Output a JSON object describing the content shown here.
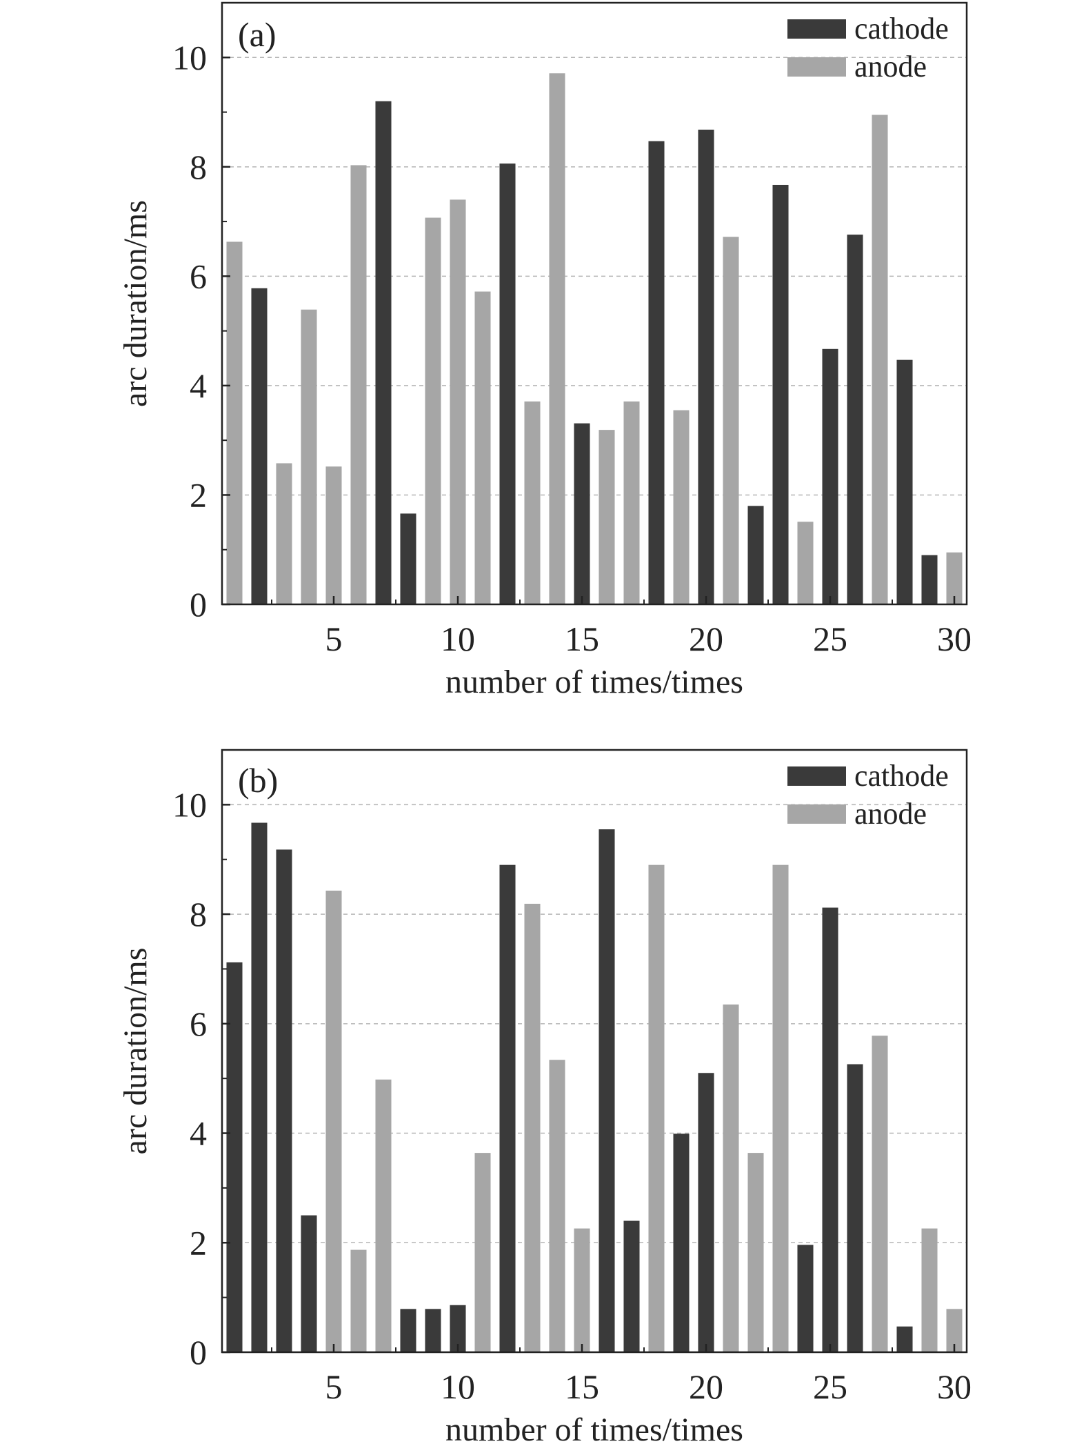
{
  "chart_data": [
    {
      "type": "bar",
      "panel_label": "(a)",
      "xlabel": "number of times/times",
      "ylabel": "arc duration/ms",
      "xlim": [
        0.5,
        30.5
      ],
      "ylim": [
        0,
        11
      ],
      "xticks": [
        5,
        10,
        15,
        20,
        25,
        30
      ],
      "yticks": [
        0,
        2,
        4,
        6,
        8,
        10
      ],
      "grid": "horizontal-dashed",
      "legend_position": "top-right",
      "colors": {
        "cathode": "#3a3a3a",
        "anode": "#a6a6a6"
      },
      "legend": [
        {
          "key": "cathode",
          "label": "cathode"
        },
        {
          "key": "anode",
          "label": "anode"
        }
      ],
      "bars": [
        {
          "x": 1,
          "type": "anode",
          "value": 6.63
        },
        {
          "x": 2,
          "type": "cathode",
          "value": 5.78
        },
        {
          "x": 3,
          "type": "anode",
          "value": 2.58
        },
        {
          "x": 4,
          "type": "anode",
          "value": 5.39
        },
        {
          "x": 5,
          "type": "anode",
          "value": 2.52
        },
        {
          "x": 6,
          "type": "anode",
          "value": 8.03
        },
        {
          "x": 7,
          "type": "cathode",
          "value": 9.2
        },
        {
          "x": 8,
          "type": "cathode",
          "value": 1.66
        },
        {
          "x": 9,
          "type": "anode",
          "value": 7.07
        },
        {
          "x": 10,
          "type": "anode",
          "value": 7.4
        },
        {
          "x": 11,
          "type": "anode",
          "value": 5.72
        },
        {
          "x": 12,
          "type": "cathode",
          "value": 8.06
        },
        {
          "x": 13,
          "type": "anode",
          "value": 3.71
        },
        {
          "x": 14,
          "type": "anode",
          "value": 9.71
        },
        {
          "x": 15,
          "type": "cathode",
          "value": 3.31
        },
        {
          "x": 16,
          "type": "anode",
          "value": 3.19
        },
        {
          "x": 17,
          "type": "anode",
          "value": 3.71
        },
        {
          "x": 18,
          "type": "cathode",
          "value": 8.47
        },
        {
          "x": 19,
          "type": "anode",
          "value": 3.55
        },
        {
          "x": 20,
          "type": "cathode",
          "value": 8.68
        },
        {
          "x": 21,
          "type": "anode",
          "value": 6.72
        },
        {
          "x": 22,
          "type": "cathode",
          "value": 1.8
        },
        {
          "x": 23,
          "type": "cathode",
          "value": 7.67
        },
        {
          "x": 24,
          "type": "anode",
          "value": 1.51
        },
        {
          "x": 25,
          "type": "cathode",
          "value": 4.67
        },
        {
          "x": 26,
          "type": "cathode",
          "value": 6.76
        },
        {
          "x": 27,
          "type": "anode",
          "value": 8.95
        },
        {
          "x": 28,
          "type": "cathode",
          "value": 4.47
        },
        {
          "x": 29,
          "type": "cathode",
          "value": 0.9
        },
        {
          "x": 30,
          "type": "anode",
          "value": 0.95
        }
      ]
    },
    {
      "type": "bar",
      "panel_label": "(b)",
      "xlabel": "number of times/times",
      "ylabel": "arc duration/ms",
      "xlim": [
        0.5,
        30.5
      ],
      "ylim": [
        0,
        11
      ],
      "xticks": [
        5,
        10,
        15,
        20,
        25,
        30
      ],
      "yticks": [
        0,
        2,
        4,
        6,
        8,
        10
      ],
      "grid": "horizontal-dashed",
      "legend_position": "top-right",
      "colors": {
        "cathode": "#3a3a3a",
        "anode": "#a6a6a6"
      },
      "legend": [
        {
          "key": "cathode",
          "label": "cathode"
        },
        {
          "key": "anode",
          "label": "anode"
        }
      ],
      "bars": [
        {
          "x": 1,
          "type": "cathode",
          "value": 7.12
        },
        {
          "x": 2,
          "type": "cathode",
          "value": 9.67
        },
        {
          "x": 3,
          "type": "cathode",
          "value": 9.18
        },
        {
          "x": 4,
          "type": "cathode",
          "value": 2.5
        },
        {
          "x": 5,
          "type": "anode",
          "value": 8.43
        },
        {
          "x": 6,
          "type": "anode",
          "value": 1.87
        },
        {
          "x": 7,
          "type": "anode",
          "value": 4.98
        },
        {
          "x": 8,
          "type": "cathode",
          "value": 0.79
        },
        {
          "x": 9,
          "type": "cathode",
          "value": 0.79
        },
        {
          "x": 10,
          "type": "cathode",
          "value": 0.86
        },
        {
          "x": 11,
          "type": "anode",
          "value": 3.64
        },
        {
          "x": 12,
          "type": "cathode",
          "value": 8.9
        },
        {
          "x": 13,
          "type": "anode",
          "value": 8.19
        },
        {
          "x": 14,
          "type": "anode",
          "value": 5.34
        },
        {
          "x": 15,
          "type": "anode",
          "value": 2.26
        },
        {
          "x": 16,
          "type": "cathode",
          "value": 9.55
        },
        {
          "x": 17,
          "type": "cathode",
          "value": 2.4
        },
        {
          "x": 18,
          "type": "anode",
          "value": 8.9
        },
        {
          "x": 19,
          "type": "cathode",
          "value": 3.99
        },
        {
          "x": 20,
          "type": "cathode",
          "value": 5.1
        },
        {
          "x": 21,
          "type": "anode",
          "value": 6.35
        },
        {
          "x": 22,
          "type": "anode",
          "value": 3.64
        },
        {
          "x": 23,
          "type": "anode",
          "value": 8.9
        },
        {
          "x": 24,
          "type": "cathode",
          "value": 1.96
        },
        {
          "x": 25,
          "type": "cathode",
          "value": 8.12
        },
        {
          "x": 26,
          "type": "cathode",
          "value": 5.26
        },
        {
          "x": 27,
          "type": "anode",
          "value": 5.78
        },
        {
          "x": 28,
          "type": "cathode",
          "value": 0.47
        },
        {
          "x": 29,
          "type": "anode",
          "value": 2.26
        },
        {
          "x": 30,
          "type": "anode",
          "value": 0.79
        }
      ]
    }
  ]
}
